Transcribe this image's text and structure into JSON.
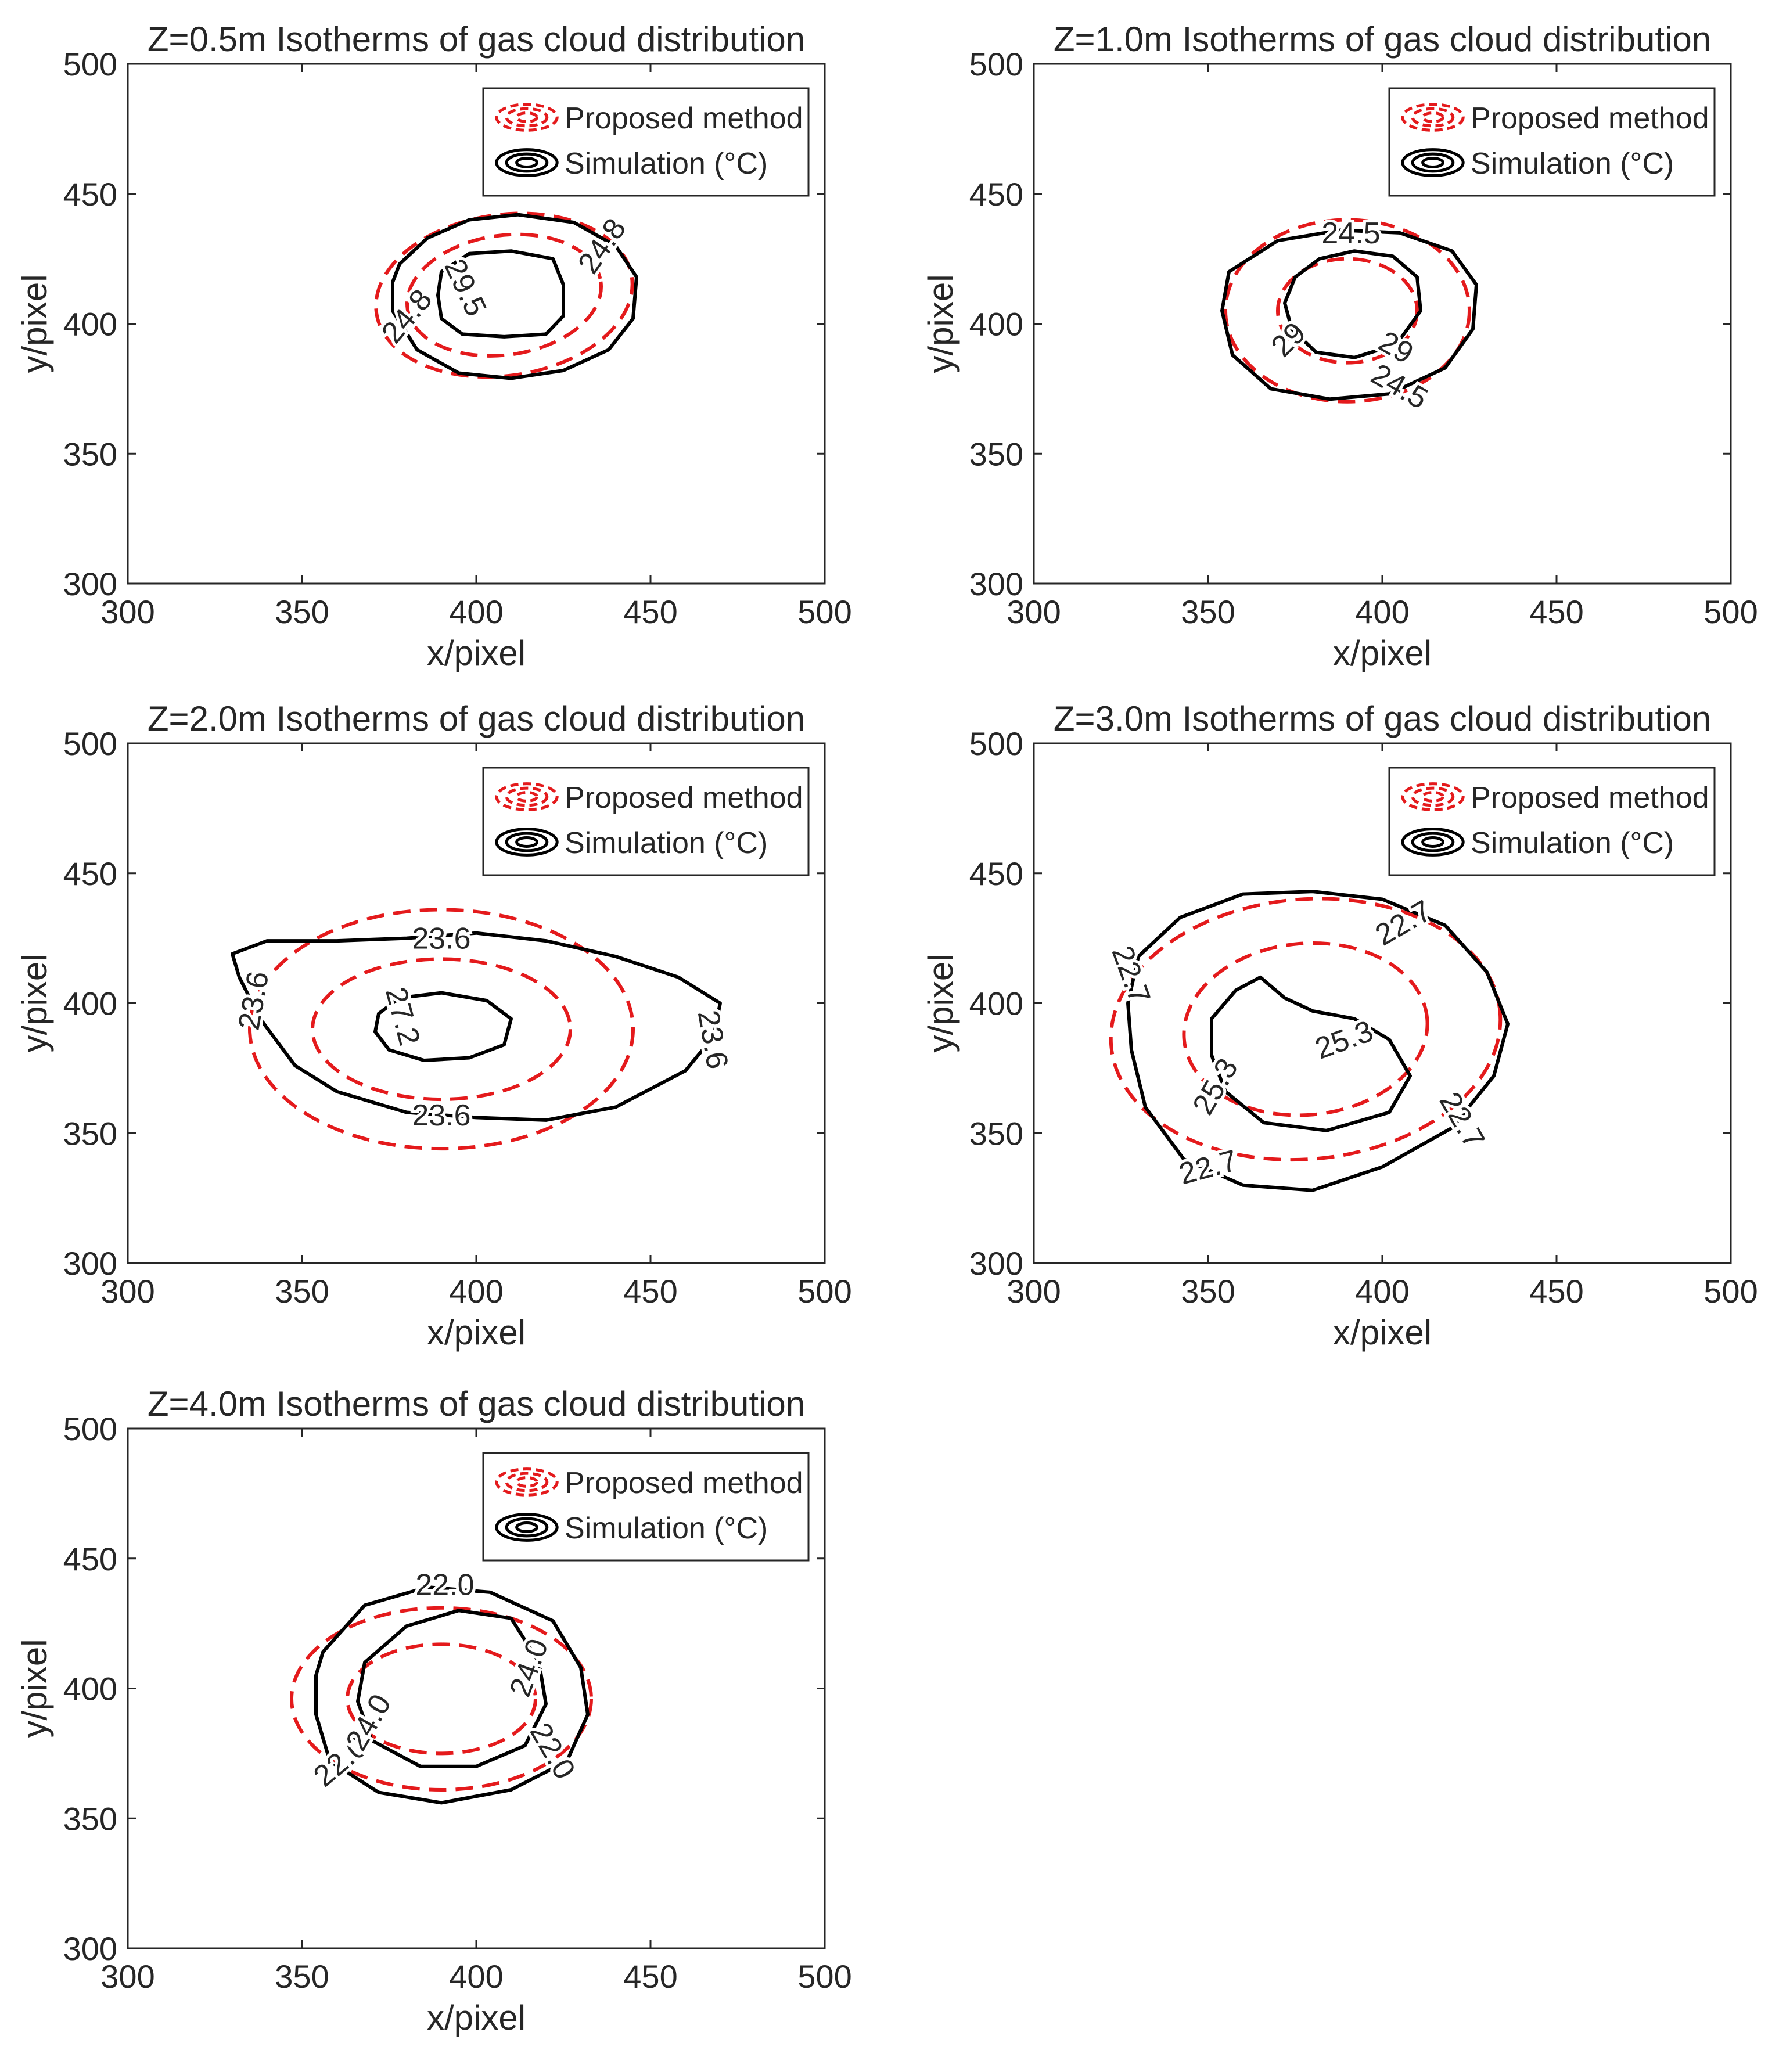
{
  "figure": {
    "legend": {
      "proposed_label": "Proposed method",
      "simulation_label": "Simulation (°C)"
    },
    "colors": {
      "proposed": "#e41a1c",
      "simulation": "#000000",
      "axis": "#262626"
    }
  },
  "chart_data": [
    {
      "type": "contour",
      "title": "Z=0.5m Isotherms of gas cloud distribution",
      "xlabel": "x/pixel",
      "ylabel": "y/pixel",
      "xlim": [
        300,
        500
      ],
      "ylim": [
        300,
        500
      ],
      "xticks": [
        "300",
        "350",
        "400",
        "450",
        "500"
      ],
      "yticks": [
        "300",
        "350",
        "400",
        "450",
        "500"
      ],
      "legend_position": "top-right",
      "proposed_contours": [
        {
          "cx": 408,
          "cy": 411,
          "rx": 37,
          "ry": 31,
          "rot": -8
        },
        {
          "cx": 408,
          "cy": 411,
          "rx": 28,
          "ry": 23,
          "rot": -8
        }
      ],
      "simulation_contours": [
        {
          "level": "24.8",
          "points": [
            [
              378,
              423
            ],
            [
              386,
              433
            ],
            [
              398,
              440
            ],
            [
              412,
              442
            ],
            [
              428,
              439
            ],
            [
              440,
              430
            ],
            [
              446,
              418
            ],
            [
              445,
              402
            ],
            [
              438,
              390
            ],
            [
              425,
              382
            ],
            [
              410,
              379
            ],
            [
              395,
              381
            ],
            [
              383,
              390
            ],
            [
              376,
              405
            ],
            [
              376,
              416
            ]
          ]
        },
        {
          "level": "29.5",
          "points": [
            [
              390,
              420
            ],
            [
              398,
              427
            ],
            [
              410,
              428
            ],
            [
              422,
              425
            ],
            [
              425,
              415
            ],
            [
              425,
              403
            ],
            [
              420,
              396
            ],
            [
              408,
              395
            ],
            [
              396,
              396
            ],
            [
              390,
              402
            ],
            [
              389,
              411
            ]
          ]
        }
      ],
      "labels": [
        {
          "text": "24.8",
          "x": 436,
          "y": 430,
          "angle": 55
        },
        {
          "text": "24.8",
          "x": 380,
          "y": 403,
          "angle": 50
        },
        {
          "text": "29.5",
          "x": 397,
          "y": 414,
          "angle": -65
        }
      ]
    },
    {
      "type": "contour",
      "title": "Z=1.0m Isotherms of gas cloud distribution",
      "xlabel": "x/pixel",
      "ylabel": "y/pixel",
      "xlim": [
        300,
        500
      ],
      "ylim": [
        300,
        500
      ],
      "xticks": [
        "300",
        "350",
        "400",
        "450",
        "500"
      ],
      "yticks": [
        "300",
        "350",
        "400",
        "450",
        "500"
      ],
      "legend_position": "top-right",
      "proposed_contours": [
        {
          "cx": 390,
          "cy": 405,
          "rx": 35,
          "ry": 35,
          "rot": 0
        },
        {
          "cx": 390,
          "cy": 405,
          "rx": 20,
          "ry": 20,
          "rot": 0
        }
      ],
      "simulation_contours": [
        {
          "level": "24.5",
          "points": [
            [
              356,
              420
            ],
            [
              370,
              432
            ],
            [
              388,
              436
            ],
            [
              405,
              435
            ],
            [
              420,
              428
            ],
            [
              427,
              415
            ],
            [
              426,
              398
            ],
            [
              418,
              383
            ],
            [
              402,
              373
            ],
            [
              385,
              371
            ],
            [
              368,
              375
            ],
            [
              357,
              388
            ],
            [
              354,
              405
            ]
          ]
        },
        {
          "level": "29",
          "points": [
            [
              375,
              418
            ],
            [
              382,
              425
            ],
            [
              392,
              428
            ],
            [
              403,
              426
            ],
            [
              410,
              418
            ],
            [
              411,
              405
            ],
            [
              404,
              392
            ],
            [
              392,
              387
            ],
            [
              381,
              389
            ],
            [
              374,
              398
            ],
            [
              372,
              408
            ]
          ]
        }
      ],
      "labels": [
        {
          "text": "24.5",
          "x": 391,
          "y": 435,
          "angle": 0
        },
        {
          "text": "24.5",
          "x": 405,
          "y": 376,
          "angle": -30
        },
        {
          "text": "29",
          "x": 373,
          "y": 394,
          "angle": 45
        },
        {
          "text": "29",
          "x": 404,
          "y": 391,
          "angle": -30
        }
      ]
    },
    {
      "type": "contour",
      "title": "Z=2.0m Isotherms of gas cloud distribution",
      "xlabel": "x/pixel",
      "ylabel": "y/pixel",
      "xlim": [
        300,
        500
      ],
      "ylim": [
        300,
        500
      ],
      "xticks": [
        "300",
        "350",
        "400",
        "450",
        "500"
      ],
      "yticks": [
        "300",
        "350",
        "400",
        "450",
        "500"
      ],
      "legend_position": "top-right",
      "proposed_contours": [
        {
          "cx": 390,
          "cy": 390,
          "rx": 55,
          "ry": 46,
          "rot": 0
        },
        {
          "cx": 390,
          "cy": 390,
          "rx": 37,
          "ry": 27,
          "rot": 0
        }
      ],
      "simulation_contours": [
        {
          "level": "23.6",
          "points": [
            [
              330,
              419
            ],
            [
              340,
              424
            ],
            [
              360,
              424
            ],
            [
              380,
              425
            ],
            [
              400,
              427
            ],
            [
              420,
              424
            ],
            [
              440,
              418
            ],
            [
              458,
              410
            ],
            [
              470,
              400
            ],
            [
              468,
              387
            ],
            [
              460,
              374
            ],
            [
              440,
              360
            ],
            [
              420,
              355
            ],
            [
              400,
              356
            ],
            [
              380,
              358
            ],
            [
              360,
              366
            ],
            [
              348,
              376
            ],
            [
              338,
              394
            ],
            [
              332,
              410
            ]
          ]
        },
        {
          "level": "27.2",
          "points": [
            [
              372,
              396
            ],
            [
              378,
              402
            ],
            [
              390,
              404
            ],
            [
              403,
              401
            ],
            [
              410,
              394
            ],
            [
              408,
              384
            ],
            [
              398,
              379
            ],
            [
              385,
              378
            ],
            [
              375,
              382
            ],
            [
              371,
              389
            ]
          ]
        }
      ],
      "labels": [
        {
          "text": "23.6",
          "x": 390,
          "y": 425,
          "angle": 0
        },
        {
          "text": "23.6",
          "x": 390,
          "y": 357,
          "angle": 0
        },
        {
          "text": "23.6",
          "x": 336,
          "y": 401,
          "angle": 80
        },
        {
          "text": "23.6",
          "x": 468,
          "y": 386,
          "angle": -80
        },
        {
          "text": "27.2",
          "x": 379,
          "y": 395,
          "angle": -75
        }
      ]
    },
    {
      "type": "contour",
      "title": "Z=3.0m Isotherms of gas cloud distribution",
      "xlabel": "x/pixel",
      "ylabel": "y/pixel",
      "xlim": [
        300,
        500
      ],
      "ylim": [
        300,
        500
      ],
      "xticks": [
        "300",
        "350",
        "400",
        "450",
        "500"
      ],
      "yticks": [
        "300",
        "350",
        "400",
        "450",
        "500"
      ],
      "legend_position": "top-right",
      "proposed_contours": [
        {
          "cx": 378,
          "cy": 390,
          "rx": 56,
          "ry": 50,
          "rot": -5
        },
        {
          "cx": 378,
          "cy": 390,
          "rx": 35,
          "ry": 33,
          "rot": -5
        }
      ],
      "simulation_contours": [
        {
          "level": "22.7",
          "points": [
            [
              330,
              418
            ],
            [
              342,
              433
            ],
            [
              360,
              442
            ],
            [
              380,
              443
            ],
            [
              400,
              440
            ],
            [
              418,
              430
            ],
            [
              430,
              412
            ],
            [
              436,
              392
            ],
            [
              432,
              372
            ],
            [
              420,
              352
            ],
            [
              400,
              337
            ],
            [
              380,
              328
            ],
            [
              360,
              330
            ],
            [
              343,
              340
            ],
            [
              332,
              360
            ],
            [
              328,
              382
            ],
            [
              327,
              400
            ]
          ]
        },
        {
          "level": "25.3",
          "points": [
            [
              351,
              394
            ],
            [
              358,
              405
            ],
            [
              365,
              410
            ],
            [
              372,
              402
            ],
            [
              380,
              397
            ],
            [
              392,
              394
            ],
            [
              402,
              386
            ],
            [
              408,
              372
            ],
            [
              402,
              358
            ],
            [
              384,
              351
            ],
            [
              366,
              354
            ],
            [
              355,
              366
            ],
            [
              351,
              380
            ]
          ]
        }
      ],
      "labels": [
        {
          "text": "22.7",
          "x": 406,
          "y": 431,
          "angle": 30
        },
        {
          "text": "22.7",
          "x": 328,
          "y": 411,
          "angle": -70
        },
        {
          "text": "22.7",
          "x": 350,
          "y": 337,
          "angle": 15
        },
        {
          "text": "22.7",
          "x": 423,
          "y": 355,
          "angle": -60
        },
        {
          "text": "25.3",
          "x": 389,
          "y": 386,
          "angle": 20
        },
        {
          "text": "25.3",
          "x": 352,
          "y": 368,
          "angle": 60
        }
      ]
    },
    {
      "type": "contour",
      "title": "Z=4.0m Isotherms of gas cloud distribution",
      "xlabel": "x/pixel",
      "ylabel": "y/pixel",
      "xlim": [
        300,
        500
      ],
      "ylim": [
        300,
        500
      ],
      "xticks": [
        "300",
        "350",
        "400",
        "450",
        "500"
      ],
      "yticks": [
        "300",
        "350",
        "400",
        "450",
        "500"
      ],
      "legend_position": "top-right",
      "proposed_contours": [
        {
          "cx": 390,
          "cy": 396,
          "rx": 43,
          "ry": 35,
          "rot": 0
        },
        {
          "cx": 390,
          "cy": 396,
          "rx": 27,
          "ry": 21,
          "rot": 0
        }
      ],
      "simulation_contours": [
        {
          "level": "22.0",
          "points": [
            [
              356,
              414
            ],
            [
              368,
              432
            ],
            [
              386,
              439
            ],
            [
              404,
              437
            ],
            [
              422,
              426
            ],
            [
              430,
              408
            ],
            [
              432,
              390
            ],
            [
              426,
              372
            ],
            [
              410,
              361
            ],
            [
              390,
              356
            ],
            [
              372,
              360
            ],
            [
              358,
              372
            ],
            [
              354,
              390
            ],
            [
              354,
              405
            ]
          ]
        },
        {
          "level": "24.0",
          "points": [
            [
              368,
              410
            ],
            [
              380,
              424
            ],
            [
              395,
              430
            ],
            [
              410,
              427
            ],
            [
              418,
              410
            ],
            [
              420,
              394
            ],
            [
              414,
              378
            ],
            [
              400,
              370
            ],
            [
              384,
              370
            ],
            [
              370,
              380
            ],
            [
              366,
              395
            ]
          ]
        }
      ],
      "labels": [
        {
          "text": "22.0",
          "x": 391,
          "y": 440,
          "angle": 0
        },
        {
          "text": "22.0",
          "x": 361,
          "y": 372,
          "angle": 40
        },
        {
          "text": "22.0",
          "x": 422,
          "y": 376,
          "angle": -60
        },
        {
          "text": "24.0",
          "x": 415,
          "y": 408,
          "angle": 70
        },
        {
          "text": "24.0",
          "x": 369,
          "y": 387,
          "angle": 60
        }
      ]
    }
  ]
}
